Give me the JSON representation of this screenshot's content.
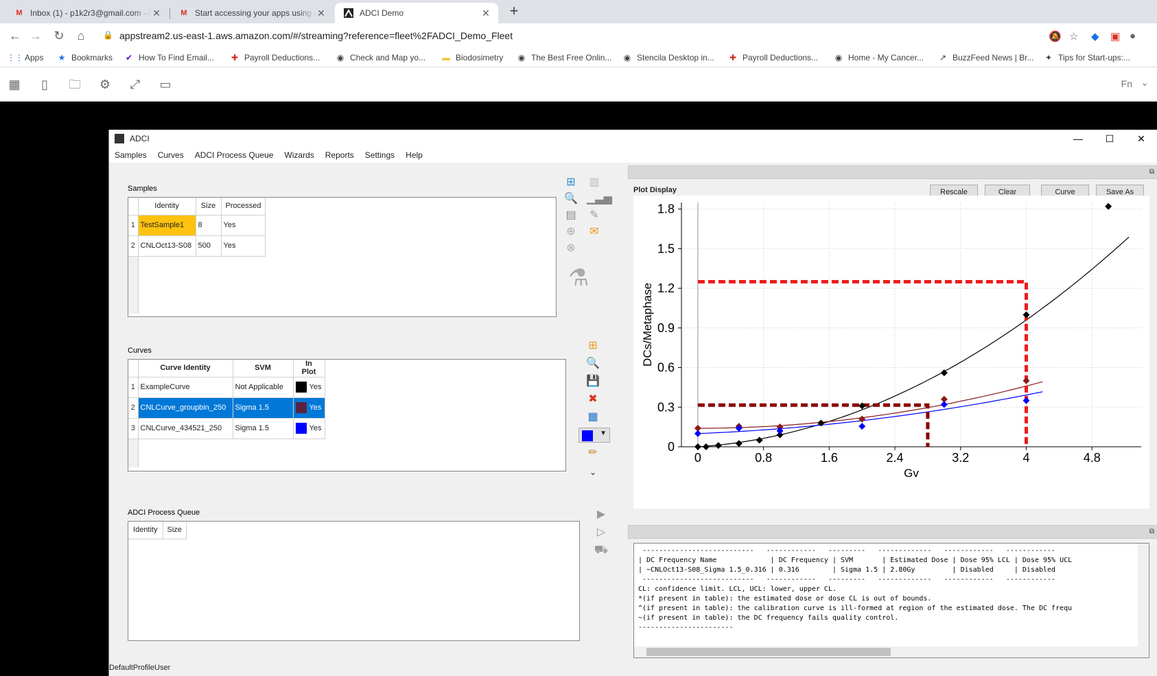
{
  "browser": {
    "tabs": [
      {
        "title": "Inbox (1) - p1k2r3@gmail.com - G",
        "icon": "gmail-icon"
      },
      {
        "title": "Start accessing your apps using A",
        "icon": "gmail-icon"
      },
      {
        "title": "ADCI Demo",
        "icon": "app-icon"
      }
    ],
    "new_tab": "+",
    "url": "appstream2.us-east-1.aws.amazon.com/#/streaming?reference=fleet%2FADCI_Demo_Fleet",
    "bookmarks": [
      "Apps",
      "Bookmarks",
      "How To Find Email...",
      "Payroll Deductions...",
      "Check and Map yo...",
      "Biodosimetry",
      "The Best Free Onlin...",
      "Stencila Desktop in...",
      "Payroll Deductions...",
      "Home - My Cancer...",
      "BuzzFeed News | Br...",
      "Tips for Start-ups:..."
    ],
    "fn_label": "Fn"
  },
  "app": {
    "title": "ADCI",
    "menu": [
      "Samples",
      "Curves",
      "ADCI Process Queue",
      "Wizards",
      "Reports",
      "Settings",
      "Help"
    ],
    "samples": {
      "label": "Samples",
      "headers": [
        "Identity",
        "Size",
        "Processed"
      ],
      "rows": [
        {
          "n": "1",
          "identity": "TestSample1",
          "size": "8",
          "processed": "Yes"
        },
        {
          "n": "2",
          "identity": "CNLOct13-S08",
          "size": "500",
          "processed": "Yes"
        }
      ]
    },
    "curves": {
      "label": "Curves",
      "headers": [
        "Curve Identity",
        "SVM",
        "In Plot"
      ],
      "rows": [
        {
          "n": "1",
          "identity": "ExampleCurve",
          "svm": "Not Applicable",
          "inplot": "Yes",
          "color": "#000000"
        },
        {
          "n": "2",
          "identity": "CNLCurve_groupbin_250",
          "svm": "Sigma 1.5",
          "inplot": "Yes",
          "color": "#5b2340"
        },
        {
          "n": "3",
          "identity": "CNLCurve_434521_250",
          "svm": "Sigma 1.5",
          "inplot": "Yes",
          "color": "#0000ff"
        }
      ],
      "selected_color": "#0000ff"
    },
    "queue": {
      "label": "ADCI Process Queue",
      "headers": [
        "Identity",
        "Size"
      ]
    },
    "plot": {
      "label": "Plot Display",
      "buttons": [
        "Rescale",
        "Clear",
        "Curve Legend",
        "Save As"
      ]
    },
    "output_lines": [
      " ---------------------------   ------------   ---------   -------------   ------------   ------------",
      "| DC Frequency Name             | DC Frequency | SVM       | Estimated Dose | Dose 95% LCL | Dose 95% UCL",
      "| ~CNLOct13-S08_Sigma 1.5_0.316 | 0.316        | Sigma 1.5 | 2.80Gy         | Disabled     | Disabled",
      " ---------------------------   ------------   ---------   -------------   ------------   ------------",
      "CL: confidence limit. LCL, UCL: lower, upper CL.",
      "*(if present in table): the estimated dose or dose CL is out of bounds.",
      "^(if present in table): the calibration curve is ill-formed at region of the estimated dose. The DC frequ",
      "~(if present in table): the DC frequency fails quality control.",
      "-----------------------"
    ],
    "status": "DefaultProfileUser"
  },
  "chart_data": {
    "type": "scatter",
    "xlabel": "Gv",
    "ylabel": "DCs/Metaphase",
    "xlim": [
      -0.2,
      5.4
    ],
    "ylim": [
      0,
      1.85
    ],
    "xticks": [
      0,
      0.8,
      1.6,
      2.4,
      3.2,
      4,
      4.8
    ],
    "xtick_labels": [
      "0",
      "0.8",
      "1.6",
      "2.4",
      "3.2",
      "4",
      "4.8"
    ],
    "yticks": [
      0,
      0.3,
      0.6,
      0.9,
      1.2,
      1.5,
      1.8
    ],
    "ytick_labels": [
      "0",
      "0.3",
      "0.6",
      "0.9",
      "1.2",
      "1.5",
      "1.8"
    ],
    "grid": true,
    "series": [
      {
        "color": "#000000",
        "points": [
          [
            0,
            0
          ],
          [
            0.1,
            0
          ],
          [
            0.25,
            0.01
          ],
          [
            0.5,
            0.025
          ],
          [
            0.75,
            0.05
          ],
          [
            1,
            0.09
          ],
          [
            1.5,
            0.18
          ],
          [
            2,
            0.31
          ],
          [
            3,
            0.56
          ],
          [
            4,
            1.0
          ],
          [
            5,
            1.82
          ]
        ],
        "curve": {
          "c": 0.0,
          "a": 0.04,
          "b": 0.05,
          "xmax": 5.25
        }
      },
      {
        "color": "#8b1a1a",
        "points": [
          [
            0,
            0.14
          ],
          [
            0.5,
            0.155
          ],
          [
            1,
            0.15
          ],
          [
            2,
            0.21
          ],
          [
            3,
            0.36
          ],
          [
            4,
            0.5
          ]
        ],
        "curve": {
          "c": 0.14,
          "a": 0.0,
          "b": 0.02,
          "xmax": 4.2
        }
      },
      {
        "color": "#0000ff",
        "points": [
          [
            0,
            0.1
          ],
          [
            0.5,
            0.14
          ],
          [
            1,
            0.12
          ],
          [
            2,
            0.155
          ],
          [
            3,
            0.32
          ],
          [
            4,
            0.35
          ]
        ],
        "curve": {
          "c": 0.1,
          "a": 0.025,
          "b": 0.012,
          "xmax": 4.2
        }
      }
    ],
    "dose_markers": [
      {
        "x": 4,
        "y": 1.25,
        "color": "#ee1c1c"
      },
      {
        "x": 2.8,
        "y": 0.316,
        "color": "#8b0000"
      }
    ]
  }
}
